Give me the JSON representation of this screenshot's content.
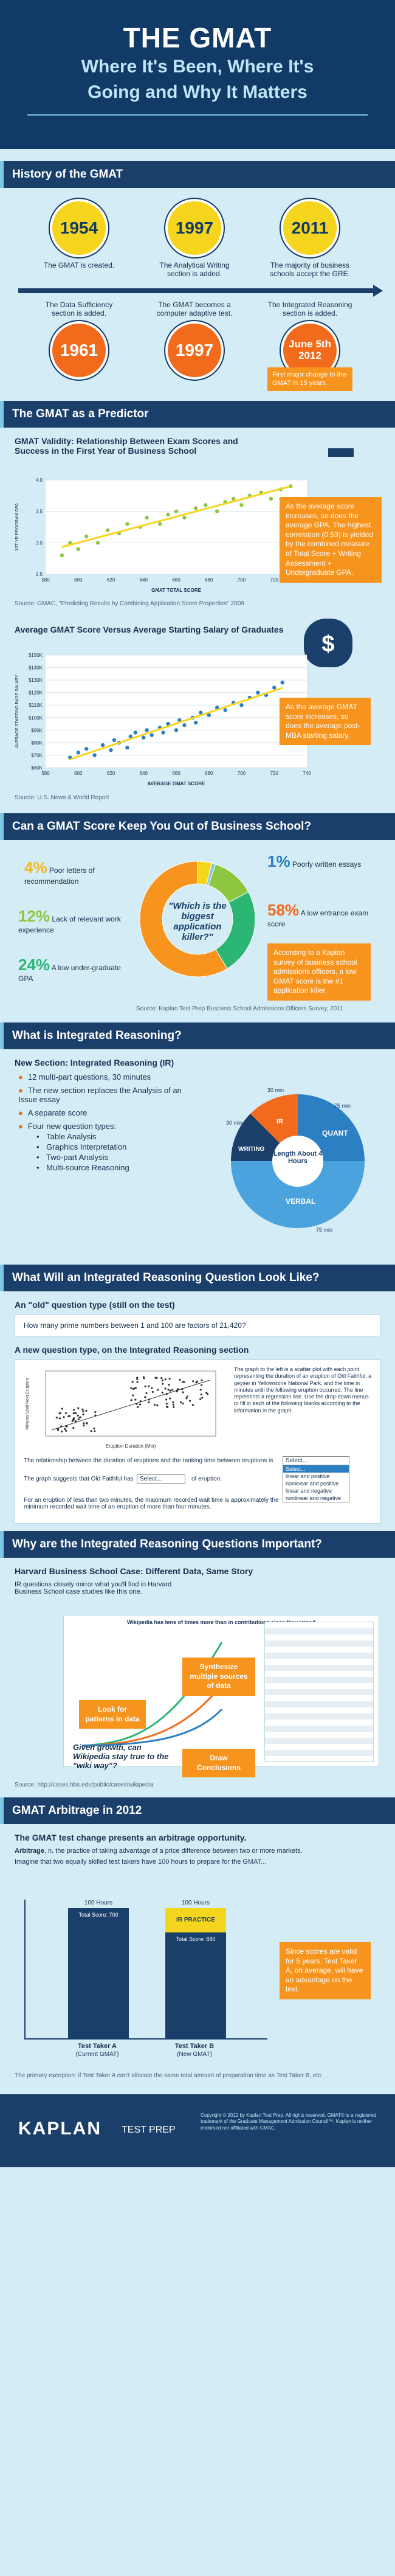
{
  "hero": {
    "title": "THE GMAT",
    "subtitle_line1": "Where It's Been, Where It's",
    "subtitle_line2": "Going and Why It Matters"
  },
  "history": {
    "heading": "History of the GMAT",
    "top": [
      {
        "year": "1954",
        "text": "The GMAT is created."
      },
      {
        "year": "1997",
        "text": "The Analytical Writing section is added."
      },
      {
        "year": "2011",
        "text": "The majority of business schools accept the GRE."
      }
    ],
    "bottom": [
      {
        "year": "1961",
        "text": "The Data Sufficiency section is added."
      },
      {
        "year": "1997",
        "text": "The GMAT becomes a computer adaptive test."
      },
      {
        "year": "June 5th 2012",
        "text": "The Integrated Reasoning section is added."
      }
    ],
    "callout": "First major change to the GMAT in 15 years."
  },
  "predictor": {
    "heading": "The GMAT as a Predictor",
    "chart1_title": "GMAT Validity: Relationship Between Exam Scores and Success in the First Year of Business School",
    "chart1_source": "Source: GMAC, \"Predicting Results by Combining Application Score Properties\" 2009",
    "chart1_callout": "As the average score increases, so does the average GPA. The highest correlation (0.53) is yielded by the combined measure of Total Score + Writing Assessment + Undergraduate GPA.",
    "chart2_title": "Average GMAT Score Versus Average Starting Salary of Graduates",
    "chart2_source": "Source: U.S. News & World Report",
    "chart2_callout": "As the average GMAT score increases, so does the average post-MBA starting salary.",
    "dollar": "$"
  },
  "chart_data": [
    {
      "type": "scatter",
      "xlabel": "GMAT TOTAL SCORE",
      "ylabel": "1ST YR PROGRAM GPA",
      "x_ticks": [
        "580",
        "600",
        "620",
        "640",
        "660",
        "680",
        "700",
        "720",
        "740"
      ],
      "y_ticks": [
        "2.5",
        "3.0",
        "3.5",
        "4.0"
      ],
      "xlim": [
        580,
        740
      ],
      "ylim": [
        2.5,
        4.0
      ],
      "x": [
        590,
        595,
        600,
        605,
        612,
        618,
        625,
        630,
        638,
        642,
        650,
        655,
        660,
        665,
        672,
        678,
        685,
        690,
        695,
        700,
        705,
        712,
        718,
        724,
        730
      ],
      "y": [
        2.8,
        3.0,
        2.9,
        3.1,
        3.0,
        3.2,
        3.15,
        3.3,
        3.25,
        3.4,
        3.3,
        3.45,
        3.5,
        3.4,
        3.55,
        3.6,
        3.5,
        3.65,
        3.7,
        3.6,
        3.75,
        3.8,
        3.7,
        3.85,
        3.9
      ]
    },
    {
      "type": "scatter",
      "xlabel": "AVERAGE GMAT SCORE",
      "ylabel": "AVERAGE STARTING BASE SALARY",
      "x_ticks": [
        "580",
        "600",
        "620",
        "640",
        "660",
        "680",
        "700",
        "720",
        "740"
      ],
      "y_ticks": [
        "$60K",
        "$70K",
        "$80K",
        "$90K",
        "$100K",
        "$110K",
        "$120K",
        "$130K",
        "$140K",
        "$150K"
      ],
      "xlim": [
        580,
        740
      ],
      "ylim": [
        60,
        150
      ],
      "x": [
        595,
        600,
        605,
        610,
        615,
        620,
        622,
        625,
        630,
        632,
        635,
        640,
        642,
        645,
        650,
        652,
        655,
        660,
        662,
        665,
        670,
        672,
        675,
        680,
        685,
        690,
        695,
        700,
        705,
        710,
        715,
        720,
        725
      ],
      "y": [
        68,
        72,
        75,
        70,
        78,
        74,
        82,
        80,
        76,
        85,
        88,
        84,
        90,
        86,
        92,
        88,
        95,
        90,
        98,
        94,
        100,
        96,
        104,
        102,
        108,
        106,
        112,
        110,
        116,
        120,
        118,
        124,
        128
      ]
    }
  ],
  "keep_out": {
    "heading": "Can a GMAT Score Keep You Out of Business School?",
    "center": "\"Which is the biggest application killer?\"",
    "segments": [
      {
        "pct": "4%",
        "label": "Poor letters of recommendation",
        "color": "#f5d51e"
      },
      {
        "pct": "1%",
        "label": "Poorly written essays",
        "color": "#7ec8e3"
      },
      {
        "pct": "12%",
        "label": "Lack of relevant work experience",
        "color": "#8dc63f"
      },
      {
        "pct": "24%",
        "label": "A low under-graduate GPA",
        "color": "#2bb673"
      },
      {
        "pct": "58%",
        "label": "A low entrance exam score",
        "color": "#f7941d"
      }
    ],
    "callout": "According to a Kaplan survey of business school admissions officers, a low GMAT score is the #1 application killer.",
    "source": "Source: Kaplan Test Prep Business School Admissions Officers Survey, 2011"
  },
  "ir": {
    "heading": "What is Integrated Reasoning?",
    "sub": "New Section: Integrated Reasoning (IR)",
    "bullets": [
      "12 multi-part questions, 30 minutes",
      "The new section replaces the Analysis of an Issue essay",
      "A separate score",
      "Four new question types:"
    ],
    "types": [
      "Table Analysis",
      "Graphics Interpretation",
      "Two-part Analysis",
      "Multi-source Reasoning"
    ],
    "wheel_center": "Length About 4 Hours",
    "wheel": [
      {
        "label": "IR",
        "time": "30 min"
      },
      {
        "label": "QUANT",
        "time": "75 min"
      },
      {
        "label": "VERBAL",
        "time": "75 min"
      },
      {
        "label": "WRITING",
        "time": "30 min"
      }
    ]
  },
  "look": {
    "heading": "What Will an Integrated Reasoning Question Look Like?",
    "old_label": "An \"old\" question type (still on the test)",
    "old_q": "How many prime numbers between 1 and 100 are factors of 21,420?",
    "new_label": "A new question type, on the Integrated Reasoning section",
    "graph_text": "The graph to the left is a scatter plot with each point representing the duration of an eruption of Old Faithful, a geyser in Yellowstone National Park, and the time in minutes until the following eruption occurred. The line represents a regression line. Use the drop-down menus to fill in each of the following blanks according to the information in the graph.",
    "q1": "The relationship between the duration of eruptions and the ranking time between eruptions is",
    "q2": "The graph suggests that Old Faithful has",
    "q2_tail": "of eruption.",
    "q3": "For an eruption of less than two minutes, the maximum recorded wait time is approximately the minimum recorded wait time of an eruption of more than four minutes.",
    "select": "Select...",
    "options": [
      "Select...",
      "linear and positive",
      "nonlinear and positive",
      "linear and negative",
      "nonlinear and negative"
    ],
    "ylabel": "Minutes Until Next Eruption",
    "xlabel": "Eruption Duration (Min)"
  },
  "why": {
    "heading": "Why are the Integrated Reasoning Questions Important?",
    "sub": "Harvard Business School Case: Different Data, Same Story",
    "intro": "IR questions closely mirror what you'll find in Harvard Business School case studies like this one.",
    "chart_title": "Wikipedia has tens of times more than in contributions since they joined",
    "tag1": "Synthesize multiple sources of data",
    "tag2": "Look for patterns in data",
    "tag3": "Draw Conclusions",
    "quote": "Given growth, can Wikipedia stay true to the \"wiki way\"?",
    "source": "Source: http://cases.hbs.edu/public/cases/wikipedia"
  },
  "arb": {
    "heading": "GMAT Arbitrage in 2012",
    "lead": "The GMAT test change presents an arbitrage opportunity.",
    "def_term": "Arbitrage",
    "def": ", n. the practice of taking advantage of a price difference between two or more markets.",
    "imagine": "Imagine that two equally skilled test takers have 100 hours to prepare for the GMAT...",
    "hours": "100 Hours",
    "a_label": "Total Score: 700",
    "b_label": "Total Score: 680",
    "in_practice": "IR PRACTICE",
    "a_name": "Test Taker A",
    "a_sub": "(Current GMAT)",
    "b_name": "Test Taker B",
    "b_sub": "(New GMAT)",
    "callout": "Since scores are valid for 5 years, Test Taker A, on average, will have an advantage on the test.",
    "fine": "The primary exception: if Test Taker A can't allocate the same total amount of preparation time as Test Taker B, etc."
  },
  "footer": {
    "brand": "KAPLAN",
    "product": "TEST PREP",
    "legal": "Copyright © 2012 by Kaplan Test Prep. All rights reserved. GMAT® is a registered trademark of the Graduate Management Admission Council™. Kaplan is neither endorsed nor affiliated with GMAC."
  }
}
